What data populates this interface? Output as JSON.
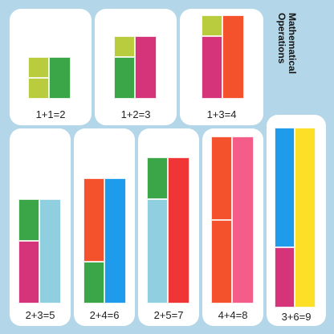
{
  "side_title": {
    "line1": "Mathematical",
    "line2": "Operations"
  },
  "colors": {
    "light_green": "#b9cc3d",
    "green": "#3aa648",
    "magenta": "#d6347a",
    "red_orange": "#f4512d",
    "light_blue": "#8fcfe0",
    "blue": "#1e9bea",
    "red": "#ef3535",
    "pink": "#f45c8a",
    "yellow": "#fddf27",
    "background": "#b3d7e9",
    "card": "#ffffff"
  },
  "cards": [
    {
      "name": "card-1-plus-1",
      "equation": "1+1=2"
    },
    {
      "name": "card-1-plus-2",
      "equation": "1+2=3"
    },
    {
      "name": "card-1-plus-3",
      "equation": "1+3=4"
    },
    {
      "name": "card-2-plus-3",
      "equation": "2+3=5"
    },
    {
      "name": "card-2-plus-4",
      "equation": "2+4=6"
    },
    {
      "name": "card-2-plus-5",
      "equation": "2+5=7"
    },
    {
      "name": "card-4-plus-4",
      "equation": "4+4=8"
    },
    {
      "name": "card-3-plus-6",
      "equation": "3+6=9"
    }
  ]
}
